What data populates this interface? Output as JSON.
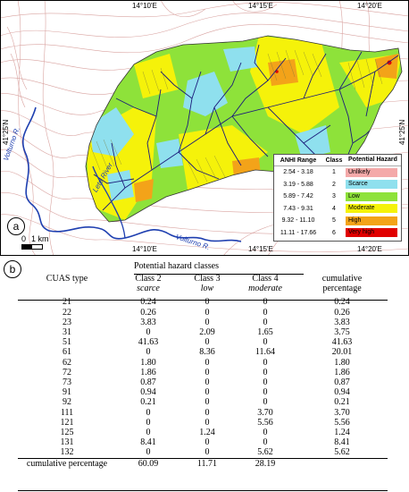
{
  "map": {
    "panel_label": "a",
    "coords": {
      "top": [
        "14°10'E",
        "14°15'E",
        "14°20'E"
      ],
      "bottom": [
        "14°10'E",
        "14°15'E",
        "14°20'E"
      ],
      "left": "41°25'N",
      "right": "41°25'N"
    },
    "rivers": [
      "Volturno R.",
      "Volturno R.",
      "Lete River"
    ],
    "scale_bar": {
      "start": "0",
      "end": "1 km"
    },
    "legend": {
      "headers": [
        "ANHI Range",
        "Class",
        "Potential Hazard"
      ],
      "rows": [
        {
          "range": "2.54 -  3.18",
          "class": "1",
          "hazard": "Unlikely",
          "color": "#f4a9a9"
        },
        {
          "range": "3.19 -  5.88",
          "class": "2",
          "hazard": "Scarce",
          "color": "#8fe0ee"
        },
        {
          "range": "5.89 -  7.42",
          "class": "3",
          "hazard": "Low",
          "color": "#8ee23a"
        },
        {
          "range": "7.43 -  9.31",
          "class": "4",
          "hazard": "Moderate",
          "color": "#f5f20a"
        },
        {
          "range": "9.32 - 11.10",
          "class": "5",
          "hazard": "High",
          "color": "#f3a319"
        },
        {
          "range": "11.11 - 17.66",
          "class": "6",
          "hazard": "Very high",
          "color": "#e00000"
        }
      ]
    }
  },
  "table": {
    "panel_label": "b",
    "group_header": "Potential hazard classes",
    "headers": {
      "type": "CUAS type",
      "c2": "Class 2",
      "c2_sub": "scarce",
      "c3": "Class 3",
      "c3_sub": "low",
      "c4": "Class 4",
      "c4_sub": "moderate",
      "cum": "cumulative",
      "cum_sub": "percentage"
    },
    "rows": [
      [
        "21",
        "0.24",
        "0",
        "0",
        "0.24"
      ],
      [
        "22",
        "0.26",
        "0",
        "0",
        "0.26"
      ],
      [
        "23",
        "3.83",
        "0",
        "0",
        "3.83"
      ],
      [
        "31",
        "0",
        "2.09",
        "1.65",
        "3.75"
      ],
      [
        "51",
        "41.63",
        "0",
        "0",
        "41.63"
      ],
      [
        "61",
        "0",
        "8.36",
        "11.64",
        "20.01"
      ],
      [
        "62",
        "1.80",
        "0",
        "0",
        "1.80"
      ],
      [
        "72",
        "1.86",
        "0",
        "0",
        "1.86"
      ],
      [
        "73",
        "0.87",
        "0",
        "0",
        "0.87"
      ],
      [
        "91",
        "0.94",
        "0",
        "0",
        "0.94"
      ],
      [
        "92",
        "0.21",
        "0",
        "0",
        "0.21"
      ],
      [
        "111",
        "0",
        "0",
        "3.70",
        "3.70"
      ],
      [
        "121",
        "0",
        "0",
        "5.56",
        "5.56"
      ],
      [
        "125",
        "0",
        "1.24",
        "0",
        "1.24"
      ],
      [
        "131",
        "8.41",
        "0",
        "0",
        "8.41"
      ],
      [
        "132",
        "0",
        "0",
        "5.62",
        "5.62"
      ]
    ],
    "total": [
      "cumulative percentage",
      "60.09",
      "11.71",
      "28.19",
      ""
    ]
  }
}
